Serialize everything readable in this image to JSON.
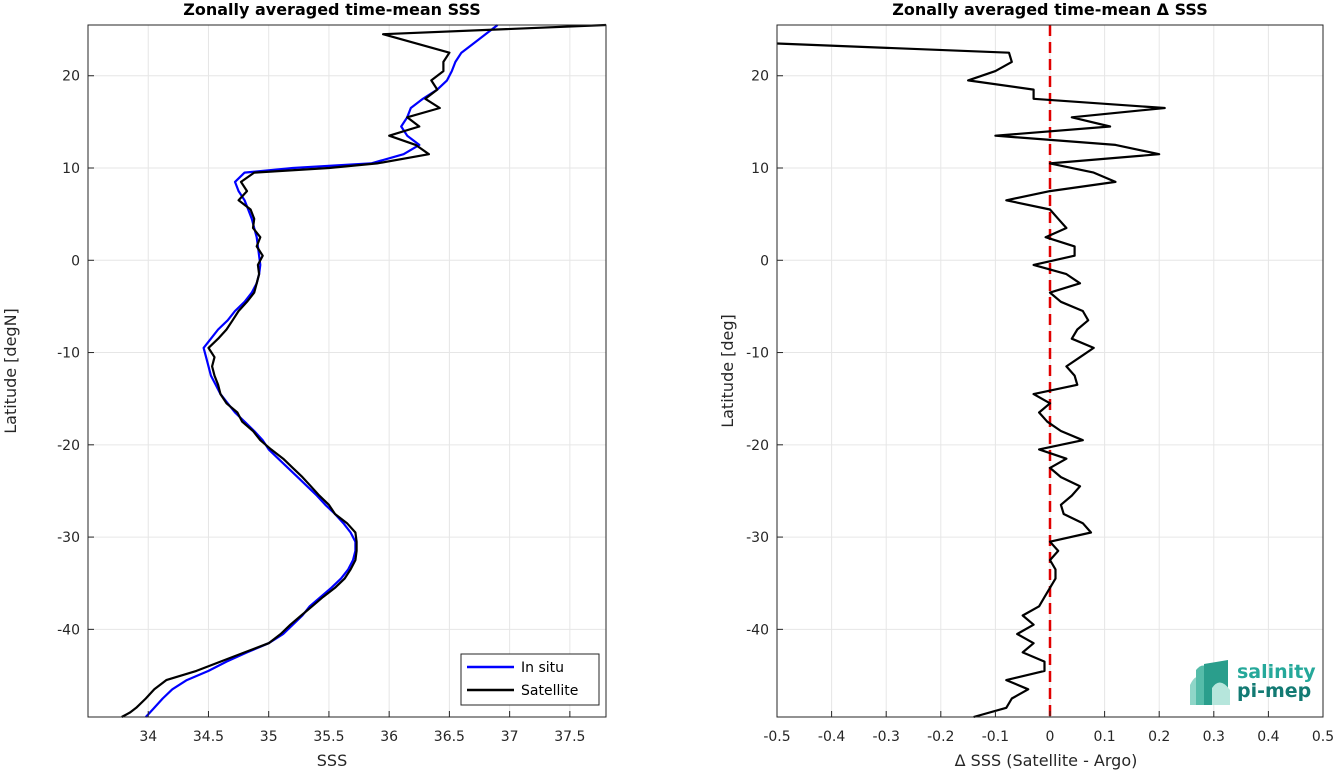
{
  "chart_data": [
    {
      "type": "line",
      "title": "Zonally averaged time-mean SSS",
      "xlabel": "SSS",
      "ylabel": "Latitude [degN]",
      "xlim": [
        33.5,
        37.8
      ],
      "ylim": [
        -49.5,
        25.5
      ],
      "xticks": [
        "34",
        "34.5",
        "35",
        "35.5",
        "36",
        "36.5",
        "37",
        "37.5"
      ],
      "yticks": [
        "-40",
        "-30",
        "-20",
        "-10",
        "0",
        "10",
        "20"
      ],
      "grid": true,
      "legend_position": "bottom-right",
      "series": [
        {
          "name": "In situ",
          "color": "#0000ff",
          "points": [
            [
              33.98,
              -49.5
            ],
            [
              34.05,
              -48.5
            ],
            [
              34.12,
              -47.5
            ],
            [
              34.2,
              -46.5
            ],
            [
              34.32,
              -45.5
            ],
            [
              34.5,
              -44.5
            ],
            [
              34.65,
              -43.5
            ],
            [
              34.82,
              -42.5
            ],
            [
              35.0,
              -41.5
            ],
            [
              35.12,
              -40.5
            ],
            [
              35.2,
              -39.5
            ],
            [
              35.28,
              -38.5
            ],
            [
              35.34,
              -37.5
            ],
            [
              35.43,
              -36.5
            ],
            [
              35.52,
              -35.5
            ],
            [
              35.6,
              -34.5
            ],
            [
              35.66,
              -33.5
            ],
            [
              35.7,
              -32.5
            ],
            [
              35.72,
              -31.5
            ],
            [
              35.72,
              -30.5
            ],
            [
              35.68,
              -29.5
            ],
            [
              35.62,
              -28.5
            ],
            [
              35.55,
              -27.5
            ],
            [
              35.47,
              -26.5
            ],
            [
              35.4,
              -25.5
            ],
            [
              35.32,
              -24.5
            ],
            [
              35.24,
              -23.5
            ],
            [
              35.16,
              -22.5
            ],
            [
              35.08,
              -21.5
            ],
            [
              35.0,
              -20.5
            ],
            [
              34.95,
              -19.5
            ],
            [
              34.88,
              -18.5
            ],
            [
              34.8,
              -17.5
            ],
            [
              34.72,
              -16.5
            ],
            [
              34.66,
              -15.5
            ],
            [
              34.6,
              -14.5
            ],
            [
              34.56,
              -13.5
            ],
            [
              34.52,
              -12.5
            ],
            [
              34.5,
              -11.5
            ],
            [
              34.48,
              -10.5
            ],
            [
              34.46,
              -9.5
            ],
            [
              34.52,
              -8.5
            ],
            [
              34.58,
              -7.5
            ],
            [
              34.66,
              -6.5
            ],
            [
              34.72,
              -5.5
            ],
            [
              34.8,
              -4.5
            ],
            [
              34.86,
              -3.5
            ],
            [
              34.9,
              -2.5
            ],
            [
              34.92,
              -1.5
            ],
            [
              34.93,
              -0.5
            ],
            [
              34.92,
              0.5
            ],
            [
              34.91,
              1.5
            ],
            [
              34.9,
              2.5
            ],
            [
              34.88,
              3.5
            ],
            [
              34.86,
              4.5
            ],
            [
              34.83,
              5.5
            ],
            [
              34.8,
              6.5
            ],
            [
              34.75,
              7.5
            ],
            [
              34.72,
              8.5
            ],
            [
              34.8,
              9.5
            ],
            [
              35.2,
              10.0
            ],
            [
              35.85,
              10.5
            ],
            [
              36.12,
              11.5
            ],
            [
              36.25,
              12.5
            ],
            [
              36.15,
              13.5
            ],
            [
              36.1,
              14.5
            ],
            [
              36.15,
              15.5
            ],
            [
              36.18,
              16.5
            ],
            [
              36.28,
              17.5
            ],
            [
              36.4,
              18.5
            ],
            [
              36.48,
              19.5
            ],
            [
              36.52,
              20.5
            ],
            [
              36.55,
              21.5
            ],
            [
              36.6,
              22.5
            ],
            [
              36.7,
              23.5
            ],
            [
              36.8,
              24.5
            ],
            [
              36.9,
              25.5
            ]
          ]
        },
        {
          "name": "Satellite",
          "color": "#000000",
          "points": [
            [
              33.78,
              -49.5
            ],
            [
              33.85,
              -49.0
            ],
            [
              33.9,
              -48.5
            ],
            [
              33.98,
              -47.5
            ],
            [
              34.05,
              -46.5
            ],
            [
              34.15,
              -45.5
            ],
            [
              34.4,
              -44.5
            ],
            [
              34.6,
              -43.5
            ],
            [
              34.8,
              -42.5
            ],
            [
              35.0,
              -41.5
            ],
            [
              35.1,
              -40.5
            ],
            [
              35.18,
              -39.5
            ],
            [
              35.27,
              -38.5
            ],
            [
              35.36,
              -37.5
            ],
            [
              35.45,
              -36.5
            ],
            [
              35.55,
              -35.5
            ],
            [
              35.63,
              -34.5
            ],
            [
              35.68,
              -33.5
            ],
            [
              35.72,
              -32.5
            ],
            [
              35.73,
              -31.5
            ],
            [
              35.73,
              -30.5
            ],
            [
              35.72,
              -29.5
            ],
            [
              35.65,
              -28.5
            ],
            [
              35.55,
              -27.5
            ],
            [
              35.5,
              -26.5
            ],
            [
              35.42,
              -25.5
            ],
            [
              35.35,
              -24.5
            ],
            [
              35.28,
              -23.5
            ],
            [
              35.2,
              -22.5
            ],
            [
              35.12,
              -21.5
            ],
            [
              35.02,
              -20.5
            ],
            [
              34.93,
              -19.5
            ],
            [
              34.87,
              -18.5
            ],
            [
              34.78,
              -17.5
            ],
            [
              34.74,
              -16.5
            ],
            [
              34.65,
              -15.5
            ],
            [
              34.6,
              -14.5
            ],
            [
              34.58,
              -13.5
            ],
            [
              34.55,
              -12.5
            ],
            [
              34.53,
              -11.5
            ],
            [
              34.55,
              -10.5
            ],
            [
              34.5,
              -9.5
            ],
            [
              34.58,
              -8.5
            ],
            [
              34.65,
              -7.5
            ],
            [
              34.7,
              -6.5
            ],
            [
              34.75,
              -5.5
            ],
            [
              34.82,
              -4.5
            ],
            [
              34.88,
              -3.5
            ],
            [
              34.9,
              -2.5
            ],
            [
              34.92,
              -1.5
            ],
            [
              34.91,
              -0.5
            ],
            [
              34.95,
              0.5
            ],
            [
              34.9,
              1.5
            ],
            [
              34.93,
              2.5
            ],
            [
              34.87,
              3.5
            ],
            [
              34.88,
              4.5
            ],
            [
              34.85,
              5.5
            ],
            [
              34.75,
              6.5
            ],
            [
              34.82,
              7.5
            ],
            [
              34.77,
              8.5
            ],
            [
              34.88,
              9.5
            ],
            [
              35.5,
              10.0
            ],
            [
              35.9,
              10.5
            ],
            [
              36.33,
              11.5
            ],
            [
              36.22,
              12.5
            ],
            [
              36.0,
              13.5
            ],
            [
              36.25,
              14.5
            ],
            [
              36.15,
              15.5
            ],
            [
              36.42,
              16.5
            ],
            [
              36.3,
              17.5
            ],
            [
              36.4,
              18.5
            ],
            [
              36.35,
              19.5
            ],
            [
              36.45,
              20.5
            ],
            [
              36.45,
              21.5
            ],
            [
              36.5,
              22.5
            ],
            [
              35.95,
              24.5
            ],
            [
              37.8,
              25.5
            ]
          ]
        }
      ]
    },
    {
      "type": "line",
      "title": "Zonally averaged time-mean Δ SSS",
      "xlabel": "Δ SSS (Satellite - Argo)",
      "ylabel": "Latitude [deg]",
      "xlim": [
        -0.5,
        0.5
      ],
      "ylim": [
        -49.5,
        25.5
      ],
      "xticks": [
        "-0.5",
        "-0.4",
        "-0.3",
        "-0.2",
        "-0.1",
        "0",
        "0.1",
        "0.2",
        "0.3",
        "0.4",
        "0.5"
      ],
      "yticks": [
        "-40",
        "-30",
        "-20",
        "-10",
        "0",
        "10",
        "20"
      ],
      "grid": true,
      "reference_line": {
        "x": 0,
        "color": "#e00000",
        "style": "dashed"
      },
      "series": [
        {
          "color": "#000000",
          "points": [
            [
              -0.14,
              -49.5
            ],
            [
              -0.08,
              -48.5
            ],
            [
              -0.07,
              -47.5
            ],
            [
              -0.04,
              -46.5
            ],
            [
              -0.08,
              -45.5
            ],
            [
              -0.01,
              -44.5
            ],
            [
              -0.01,
              -43.5
            ],
            [
              -0.05,
              -42.5
            ],
            [
              -0.03,
              -41.5
            ],
            [
              -0.06,
              -40.5
            ],
            [
              -0.03,
              -39.5
            ],
            [
              -0.05,
              -38.5
            ],
            [
              -0.02,
              -37.5
            ],
            [
              -0.01,
              -36.5
            ],
            [
              0.0,
              -35.5
            ],
            [
              0.01,
              -34.5
            ],
            [
              0.01,
              -33.5
            ],
            [
              0.0,
              -32.5
            ],
            [
              0.015,
              -31.5
            ],
            [
              0.0,
              -30.5
            ],
            [
              0.075,
              -29.5
            ],
            [
              0.06,
              -28.5
            ],
            [
              0.025,
              -27.5
            ],
            [
              0.02,
              -26.5
            ],
            [
              0.04,
              -25.5
            ],
            [
              0.055,
              -24.5
            ],
            [
              0.02,
              -23.5
            ],
            [
              0.0,
              -22.5
            ],
            [
              0.03,
              -21.5
            ],
            [
              -0.02,
              -20.5
            ],
            [
              0.06,
              -19.5
            ],
            [
              0.02,
              -18.5
            ],
            [
              -0.005,
              -17.5
            ],
            [
              -0.02,
              -16.5
            ],
            [
              0.0,
              -15.5
            ],
            [
              -0.03,
              -14.5
            ],
            [
              0.05,
              -13.5
            ],
            [
              0.045,
              -12.5
            ],
            [
              0.03,
              -11.5
            ],
            [
              0.055,
              -10.5
            ],
            [
              0.08,
              -9.5
            ],
            [
              0.04,
              -8.5
            ],
            [
              0.05,
              -7.5
            ],
            [
              0.07,
              -6.5
            ],
            [
              0.06,
              -5.5
            ],
            [
              0.02,
              -4.5
            ],
            [
              0.0,
              -3.5
            ],
            [
              0.055,
              -2.5
            ],
            [
              0.03,
              -1.5
            ],
            [
              -0.03,
              -0.5
            ],
            [
              0.045,
              0.5
            ],
            [
              0.045,
              1.5
            ],
            [
              -0.008,
              2.5
            ],
            [
              0.03,
              3.5
            ],
            [
              0.015,
              4.5
            ],
            [
              0.0,
              5.5
            ],
            [
              -0.08,
              6.5
            ],
            [
              0.0,
              7.5
            ],
            [
              0.12,
              8.5
            ],
            [
              0.08,
              9.5
            ],
            [
              0.0,
              10.5
            ],
            [
              0.2,
              11.5
            ],
            [
              0.12,
              12.5
            ],
            [
              -0.1,
              13.5
            ],
            [
              0.11,
              14.5
            ],
            [
              0.04,
              15.5
            ],
            [
              0.21,
              16.5
            ],
            [
              -0.03,
              17.5
            ],
            [
              -0.03,
              18.5
            ],
            [
              -0.15,
              19.5
            ],
            [
              -0.1,
              20.5
            ],
            [
              -0.07,
              21.5
            ],
            [
              -0.075,
              22.5
            ],
            [
              -0.5,
              23.5
            ]
          ]
        }
      ]
    }
  ],
  "legend": {
    "items": [
      {
        "label": "In situ",
        "color": "#0000ff"
      },
      {
        "label": "Satellite",
        "color": "#000000"
      }
    ]
  },
  "logo": {
    "line1": "salinity",
    "line2": "pi-mep"
  }
}
